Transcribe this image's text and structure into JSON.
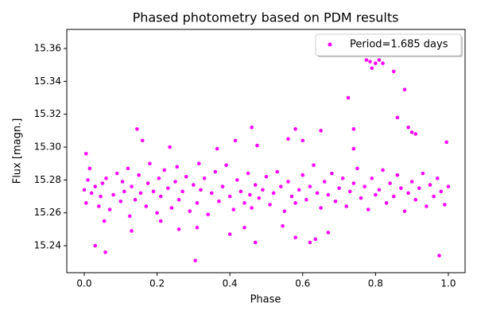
{
  "chart_data": {
    "type": "scatter",
    "title": "Phased photometry based on PDM results",
    "xlabel": "Phase",
    "ylabel": "Flux [magn.]",
    "xlim": [
      -0.048,
      1.046
    ],
    "ylim": [
      15.2236,
      15.3716
    ],
    "xticks": [
      {
        "value": 0,
        "label": "0.0"
      },
      0.2,
      0.4,
      0.6,
      0.8,
      {
        "value": 1,
        "label": "1.0"
      }
    ],
    "yticks": [
      15.24,
      15.26,
      15.28,
      {
        "value": 15.3,
        "label": "15.30"
      },
      15.32,
      15.34,
      15.36
    ],
    "legend": "upper right",
    "x": [
      0.0,
      0.005,
      0.01,
      0.015,
      0.02,
      0.03,
      0.04,
      0.045,
      0.05,
      0.06,
      0.07,
      0.08,
      0.09,
      0.1,
      0.105,
      0.11,
      0.12,
      0.125,
      0.13,
      0.14,
      0.15,
      0.155,
      0.17,
      0.175,
      0.18,
      0.19,
      0.2,
      0.205,
      0.21,
      0.22,
      0.23,
      0.24,
      0.25,
      0.255,
      0.26,
      0.27,
      0.28,
      0.29,
      0.3,
      0.31,
      0.315,
      0.32,
      0.33,
      0.34,
      0.35,
      0.36,
      0.37,
      0.38,
      0.39,
      0.4,
      0.41,
      0.42,
      0.43,
      0.44,
      0.45,
      0.455,
      0.46,
      0.47,
      0.48,
      0.49,
      0.5,
      0.51,
      0.52,
      0.53,
      0.54,
      0.55,
      0.56,
      0.57,
      0.58,
      0.59,
      0.6,
      0.61,
      0.62,
      0.63,
      0.64,
      0.65,
      0.66,
      0.67,
      0.68,
      0.69,
      0.7,
      0.71,
      0.72,
      0.73,
      0.74,
      0.75,
      0.76,
      0.77,
      0.78,
      0.79,
      0.8,
      0.81,
      0.82,
      0.83,
      0.84,
      0.85,
      0.86,
      0.87,
      0.88,
      0.89,
      0.9,
      0.91,
      0.92,
      0.93,
      0.94,
      0.95,
      0.96,
      0.97,
      0.98,
      0.99,
      1.0,
      0.005,
      0.03,
      0.058,
      0.305,
      0.975,
      0.145,
      0.16,
      0.235,
      0.46,
      0.475,
      0.58,
      0.6,
      0.65,
      0.725,
      0.74,
      0.775,
      0.785,
      0.79,
      0.8,
      0.81,
      0.82,
      0.85,
      0.86,
      0.88,
      0.89,
      0.9,
      0.91,
      0.995,
      0.365,
      0.415,
      0.56,
      0.13,
      0.31,
      0.4,
      0.44,
      0.47,
      0.58,
      0.62,
      0.635,
      0.67,
      0.26,
      0.21,
      0.055,
      0.74,
      0.545
    ],
    "series": [
      {
        "name": "Period=1.685 days",
        "color": "#ff00ff",
        "values": [
          15.274,
          15.266,
          15.28,
          15.287,
          15.272,
          15.276,
          15.264,
          15.27,
          15.278,
          15.281,
          15.262,
          15.271,
          15.284,
          15.267,
          15.279,
          15.273,
          15.287,
          15.258,
          15.276,
          15.268,
          15.283,
          15.272,
          15.264,
          15.278,
          15.29,
          15.273,
          15.26,
          15.281,
          15.27,
          15.286,
          15.275,
          15.263,
          15.279,
          15.288,
          15.268,
          15.273,
          15.282,
          15.261,
          15.277,
          15.266,
          15.29,
          15.274,
          15.281,
          15.259,
          15.272,
          15.285,
          15.267,
          15.276,
          15.289,
          15.27,
          15.262,
          15.28,
          15.273,
          15.266,
          15.284,
          15.271,
          15.263,
          15.277,
          15.269,
          15.274,
          15.282,
          15.265,
          15.272,
          15.285,
          15.276,
          15.261,
          15.279,
          15.27,
          15.266,
          15.274,
          15.283,
          15.268,
          15.276,
          15.289,
          15.272,
          15.263,
          15.279,
          15.271,
          15.284,
          15.267,
          15.275,
          15.281,
          15.264,
          15.273,
          15.278,
          15.287,
          15.269,
          15.276,
          15.262,
          15.281,
          15.271,
          15.274,
          15.286,
          15.266,
          15.278,
          15.27,
          15.283,
          15.275,
          15.261,
          15.272,
          15.279,
          15.268,
          15.275,
          15.284,
          15.264,
          15.277,
          15.27,
          15.281,
          15.273,
          15.265,
          15.276,
          15.296,
          15.24,
          15.236,
          15.231,
          15.234,
          15.311,
          15.304,
          15.3,
          15.312,
          15.301,
          15.311,
          15.304,
          15.31,
          15.33,
          15.311,
          15.353,
          15.352,
          15.348,
          15.351,
          15.353,
          15.351,
          15.346,
          15.318,
          15.335,
          15.312,
          15.309,
          15.308,
          15.303,
          15.299,
          15.304,
          15.305,
          15.249,
          15.251,
          15.247,
          15.251,
          15.242,
          15.245,
          15.242,
          15.244,
          15.248,
          15.25,
          15.255,
          15.255,
          15.299,
          15.252
        ]
      }
    ]
  }
}
